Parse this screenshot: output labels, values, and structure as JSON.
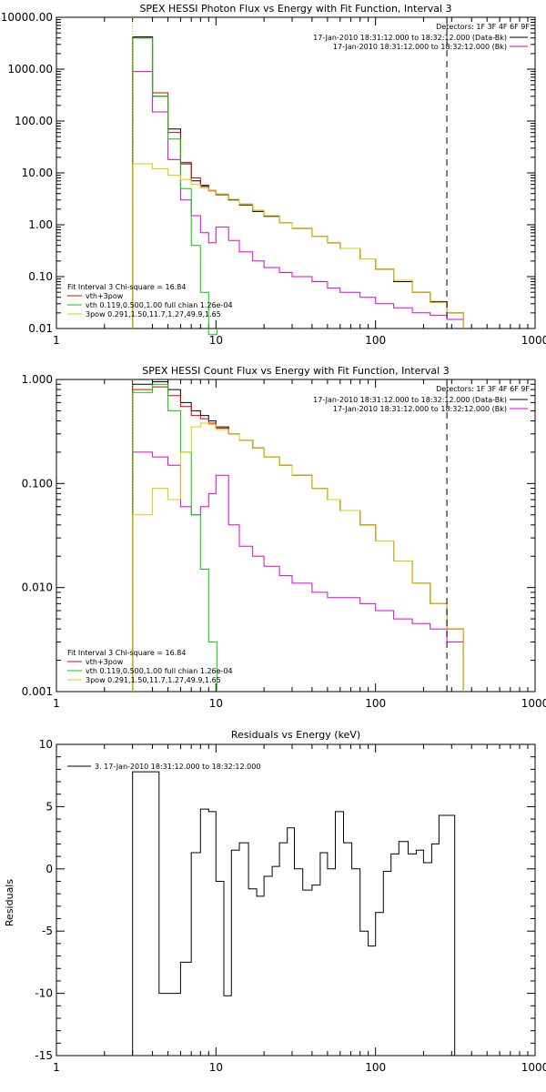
{
  "palette": {
    "data": "#000000",
    "bk": "#dd00dd",
    "fit_total": "#dd0000",
    "vth": "#00cc00",
    "pow": "#ddcc00",
    "interval_line": "#ff9900"
  },
  "chart_data": [
    {
      "type": "line",
      "title": "SPEX HESSI Photon Flux vs Energy with Fit Function, Interval 3",
      "xscale": "log",
      "yscale": "log",
      "xlim": [
        1,
        1000
      ],
      "ylim": [
        0.01,
        10000
      ],
      "xticks": [
        1,
        10,
        100,
        1000
      ],
      "xtick_labels": [
        "1",
        "10",
        "100",
        "1000"
      ],
      "yticks": [
        0.01,
        0.1,
        1,
        10,
        100,
        1000,
        10000
      ],
      "ytick_labels": [
        "0.01",
        "0.10",
        "1.00",
        "10.00",
        "100.00",
        "1000.00",
        "10000.00"
      ],
      "vlines": [
        {
          "x": 3,
          "style": "dotted",
          "color": "interval_line"
        },
        {
          "x": 280,
          "style": "dashed",
          "color": "data"
        }
      ],
      "legend_top": {
        "placement": "top-right",
        "header": "Detectors: 1F 3F 4F 6F 9F",
        "entries": [
          {
            "label": "17-Jan-2010 18:31:12.000 to 18:32:12.000 (Data-Bk)",
            "color": "data"
          },
          {
            "label": "17-Jan-2010 18:31:12.000 to 18:32:12.000 (Bk)",
            "color": "bk"
          }
        ]
      },
      "legend_bottom": {
        "placement": "bottom-left",
        "header": "Fit Interval 3   Chi-square = 16.84",
        "entries": [
          {
            "label": "vth+3pow",
            "color": "fit_total"
          },
          {
            "label": "vth 0.119,0.500,1.00  full chian 1.26e-04",
            "color": "vth"
          },
          {
            "label": "3pow 0.291,1.50,11.7,1.27,49.9,1.65",
            "color": "pow"
          }
        ]
      },
      "series": [
        {
          "role": "data",
          "color": "data",
          "x": [
            3,
            4,
            5,
            6,
            7,
            8,
            9,
            10,
            12,
            14,
            17,
            20,
            25,
            30,
            40,
            50,
            60,
            80,
            100,
            130,
            170,
            220,
            280
          ],
          "y": [
            4200,
            300,
            70,
            15,
            7,
            5.5,
            4.5,
            3.8,
            3.0,
            2.4,
            1.8,
            1.45,
            1.1,
            0.85,
            0.6,
            0.45,
            0.35,
            0.22,
            0.14,
            0.08,
            0.05,
            0.033,
            0.02
          ]
        },
        {
          "role": "bk",
          "color": "bk",
          "x": [
            3,
            4,
            5,
            6,
            7,
            8,
            9,
            10,
            12,
            14,
            17,
            20,
            25,
            30,
            40,
            50,
            60,
            80,
            100,
            130,
            170,
            220,
            280
          ],
          "y": [
            900,
            150,
            18,
            3,
            1.5,
            0.7,
            0.45,
            0.9,
            0.5,
            0.3,
            0.2,
            0.15,
            0.12,
            0.1,
            0.08,
            0.06,
            0.05,
            0.04,
            0.03,
            0.025,
            0.02,
            0.018,
            0.015
          ]
        },
        {
          "role": "fit_total",
          "color": "fit_total",
          "x": [
            3,
            4,
            5,
            6,
            7,
            8,
            9,
            10,
            12,
            14,
            17,
            20,
            25,
            30,
            40,
            50,
            60,
            80,
            100,
            130,
            170,
            220,
            280
          ],
          "y": [
            4000,
            350,
            60,
            16,
            8,
            5.8,
            4.6,
            3.9,
            3.1,
            2.5,
            1.9,
            1.5,
            1.1,
            0.86,
            0.6,
            0.45,
            0.35,
            0.22,
            0.14,
            0.085,
            0.05,
            0.032,
            0.02
          ]
        },
        {
          "role": "vth",
          "color": "vth",
          "x": [
            3,
            4,
            5,
            6,
            7,
            8,
            9
          ],
          "y": [
            4000,
            300,
            45,
            5,
            0.4,
            0.05,
            0.005
          ]
        },
        {
          "role": "pow",
          "color": "pow",
          "x": [
            3,
            4,
            5,
            6,
            7,
            8,
            9,
            10,
            12,
            14,
            17,
            20,
            25,
            30,
            40,
            50,
            60,
            80,
            100,
            130,
            170,
            220,
            280
          ],
          "y": [
            15,
            12,
            9,
            7.5,
            6,
            5.2,
            4.5,
            3.9,
            3.1,
            2.5,
            1.9,
            1.5,
            1.1,
            0.86,
            0.6,
            0.45,
            0.35,
            0.22,
            0.14,
            0.085,
            0.05,
            0.032,
            0.02
          ]
        }
      ]
    },
    {
      "type": "line",
      "title": "SPEX HESSI Count Flux vs Energy with Fit Function, Interval 3",
      "xscale": "log",
      "yscale": "log",
      "xlim": [
        1,
        1000
      ],
      "ylim": [
        0.001,
        1.0
      ],
      "xticks": [
        1,
        10,
        100,
        1000
      ],
      "xtick_labels": [
        "1",
        "10",
        "100",
        "1000"
      ],
      "yticks": [
        0.001,
        0.01,
        0.1,
        1
      ],
      "ytick_labels": [
        "0.001",
        "0.010",
        "0.100",
        "1.000"
      ],
      "vlines": [
        {
          "x": 3,
          "style": "dotted",
          "color": "interval_line"
        },
        {
          "x": 280,
          "style": "dashed",
          "color": "data"
        }
      ],
      "legend_top": {
        "placement": "top-right",
        "header": "Detectors: 1F 3F 4F 6F 9F",
        "entries": [
          {
            "label": "17-Jan-2010 18:31:12.000 to 18:32:12.000 (Data-Bk)",
            "color": "data"
          },
          {
            "label": "17-Jan-2010 18:31:12.000 to 18:32:12.000 (Bk)",
            "color": "bk"
          }
        ]
      },
      "legend_bottom": {
        "placement": "bottom-left",
        "header": "Fit Interval 3   Chi-square = 16.84",
        "entries": [
          {
            "label": "vth+3pow",
            "color": "fit_total"
          },
          {
            "label": "vth 0.119,0.500,1.00  full chian 1.26e-04",
            "color": "vth"
          },
          {
            "label": "3pow 0.291,1.50,11.7,1.27,49.9,1.65",
            "color": "pow"
          }
        ]
      },
      "series": [
        {
          "role": "data",
          "color": "data",
          "x": [
            3,
            4,
            5,
            6,
            7,
            8,
            9,
            10,
            12,
            14,
            17,
            20,
            25,
            30,
            40,
            50,
            60,
            80,
            100,
            130,
            170,
            220,
            280
          ],
          "y": [
            0.9,
            0.95,
            0.8,
            0.6,
            0.5,
            0.45,
            0.4,
            0.35,
            0.3,
            0.26,
            0.22,
            0.18,
            0.15,
            0.12,
            0.09,
            0.07,
            0.055,
            0.04,
            0.028,
            0.018,
            0.011,
            0.007,
            0.004
          ]
        },
        {
          "role": "bk",
          "color": "bk",
          "x": [
            3,
            4,
            5,
            6,
            7,
            8,
            9,
            10,
            12,
            14,
            17,
            20,
            25,
            30,
            40,
            50,
            60,
            80,
            100,
            130,
            170,
            220,
            280
          ],
          "y": [
            0.2,
            0.18,
            0.15,
            0.06,
            0.05,
            0.06,
            0.08,
            0.12,
            0.04,
            0.025,
            0.02,
            0.016,
            0.013,
            0.011,
            0.009,
            0.008,
            0.008,
            0.007,
            0.006,
            0.005,
            0.0045,
            0.004,
            0.003
          ]
        },
        {
          "role": "fit_total",
          "color": "fit_total",
          "x": [
            3,
            4,
            5,
            6,
            7,
            8,
            9,
            10,
            12,
            14,
            17,
            20,
            25,
            30,
            40,
            50,
            60,
            80,
            100,
            130,
            170,
            220,
            280
          ],
          "y": [
            0.8,
            0.85,
            0.7,
            0.55,
            0.45,
            0.42,
            0.38,
            0.34,
            0.3,
            0.26,
            0.22,
            0.18,
            0.15,
            0.12,
            0.09,
            0.07,
            0.055,
            0.04,
            0.028,
            0.018,
            0.011,
            0.007,
            0.004
          ]
        },
        {
          "role": "vth",
          "color": "vth",
          "x": [
            3,
            4,
            5,
            6,
            7,
            8,
            9
          ],
          "y": [
            0.75,
            0.9,
            0.5,
            0.2,
            0.05,
            0.015,
            0.003
          ]
        },
        {
          "role": "pow",
          "color": "pow",
          "x": [
            3,
            4,
            5,
            6,
            7,
            8,
            9,
            10,
            12,
            14,
            17,
            20,
            25,
            30,
            40,
            50,
            60,
            80,
            100,
            130,
            170,
            220,
            280
          ],
          "y": [
            0.05,
            0.09,
            0.07,
            0.2,
            0.35,
            0.38,
            0.37,
            0.33,
            0.3,
            0.26,
            0.22,
            0.18,
            0.15,
            0.12,
            0.09,
            0.07,
            0.055,
            0.04,
            0.028,
            0.018,
            0.011,
            0.007,
            0.004
          ]
        }
      ]
    },
    {
      "type": "line",
      "title": "Residuals vs Energy (keV)",
      "ylabel": "Residuals",
      "xscale": "log",
      "yscale": "linear",
      "xlim": [
        1,
        1000
      ],
      "ylim": [
        -15,
        10
      ],
      "xticks": [
        1,
        10,
        100,
        1000
      ],
      "xtick_labels": [
        "1",
        "10",
        "100",
        "1000"
      ],
      "yticks": [
        -15,
        -10,
        -5,
        0,
        5,
        10
      ],
      "ytick_labels": [
        "-15",
        "-10",
        "-5",
        "0",
        "5",
        "10"
      ],
      "legend_top": {
        "placement": "top-left",
        "entries": [
          {
            "label": "3. 17-Jan-2010 18:31:12.000 to 18:32:12.000",
            "color": "data"
          }
        ]
      },
      "series": [
        {
          "role": "data",
          "color": "data",
          "x": [
            3,
            3.6,
            4.4,
            5.2,
            6.0,
            7.0,
            8.0,
            9.0,
            10.0,
            11.2,
            12.5,
            14.0,
            16.0,
            18.0,
            20.0,
            22.5,
            25.0,
            28.0,
            31.0,
            35.0,
            40.0,
            45.0,
            50.0,
            56.0,
            63.0,
            71.0,
            80.0,
            90.0,
            100,
            112,
            125,
            140,
            160,
            180,
            200,
            225,
            250,
            280
          ],
          "y": [
            7.8,
            7.8,
            -10,
            -10,
            -7.5,
            1.3,
            4.8,
            4.6,
            -1,
            -10.2,
            1.5,
            2.1,
            -1.6,
            -2.2,
            -0.6,
            0.2,
            2.1,
            3.3,
            0,
            -1.7,
            -1.3,
            1.3,
            0,
            4.6,
            2.1,
            0,
            -5,
            -6.2,
            -3.5,
            -0.2,
            1.2,
            2.2,
            1.2,
            1.5,
            0.5,
            2,
            4.3,
            4.3
          ]
        }
      ]
    }
  ]
}
